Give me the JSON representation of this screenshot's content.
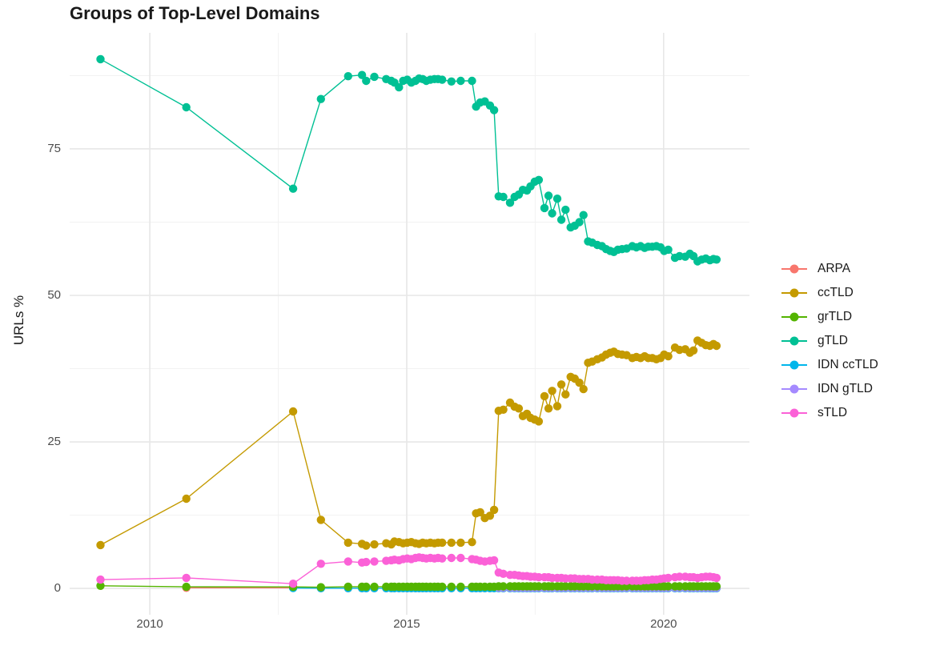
{
  "page": {
    "background": "#ffffff"
  },
  "chart_data": {
    "type": "line",
    "title": "Groups of Top-Level Domains",
    "x_axis": {
      "title": "",
      "tick_labels": [
        "2010",
        "2015",
        "2020"
      ],
      "tick_values": [
        2010,
        2015,
        2020
      ],
      "minor_tick_values": [
        2012.5,
        2017.5
      ],
      "range": [
        2008.44,
        2021.67
      ]
    },
    "y_axis": {
      "title": "URLs %",
      "tick_labels": [
        "0",
        "25",
        "50",
        "75"
      ],
      "tick_values": [
        0,
        25,
        50,
        75
      ],
      "minor_tick_values": [
        12.5,
        37.5,
        62.5,
        87.5
      ],
      "range": [
        -4.5,
        94.8
      ]
    },
    "grid": {
      "major_color": "#e7e7e7",
      "minor_color": "#f2f2f2",
      "background": "#ffffff"
    },
    "legend": {
      "position": "right",
      "items": [
        {
          "label": "ARPA",
          "color": "#F8766D"
        },
        {
          "label": "ccTLD",
          "color": "#C49A00"
        },
        {
          "label": "grTLD",
          "color": "#53B400"
        },
        {
          "label": "gTLD",
          "color": "#00C094"
        },
        {
          "label": "IDN ccTLD",
          "color": "#00B6EB"
        },
        {
          "label": "IDN gTLD",
          "color": "#A58AFF"
        },
        {
          "label": "sTLD",
          "color": "#FB61D7"
        }
      ]
    },
    "x": [
      2009.04,
      2010.71,
      2012.79,
      2013.33,
      2013.86,
      2014.13,
      2014.21,
      2014.37,
      2014.6,
      2014.7,
      2014.76,
      2014.85,
      2014.93,
      2015.01,
      2015.09,
      2015.17,
      2015.24,
      2015.31,
      2015.38,
      2015.46,
      2015.54,
      2015.61,
      2015.69,
      2015.87,
      2016.05,
      2016.27,
      2016.35,
      2016.43,
      2016.52,
      2016.62,
      2016.7,
      2016.79,
      2016.88,
      2017.01,
      2017.1,
      2017.18,
      2017.26,
      2017.34,
      2017.41,
      2017.49,
      2017.57,
      2017.68,
      2017.76,
      2017.83,
      2017.93,
      2018.01,
      2018.09,
      2018.19,
      2018.27,
      2018.36,
      2018.44,
      2018.53,
      2018.61,
      2018.71,
      2018.8,
      2018.88,
      2018.96,
      2019.03,
      2019.11,
      2019.19,
      2019.28,
      2019.39,
      2019.47,
      2019.55,
      2019.63,
      2019.7,
      2019.78,
      2019.86,
      2019.94,
      2020.01,
      2020.09,
      2020.22,
      2020.31,
      2020.42,
      2020.51,
      2020.58,
      2020.66,
      2020.74,
      2020.82,
      2020.9,
      2020.97,
      2021.03
    ],
    "series": [
      {
        "name": "ARPA",
        "color": "#F8766D",
        "start": 1,
        "values": [
          0.1,
          0.1,
          0.05,
          0.03,
          0.03,
          0.03,
          0.03,
          0.03,
          0.03,
          0.03,
          0.03,
          0.03,
          0.03,
          0.03,
          0.03,
          0.03,
          0.03,
          0.03,
          0.03,
          0.03,
          0.03,
          0.03,
          0.03,
          0.03,
          0.03,
          0.03,
          0.03,
          0.03,
          0.03,
          0.03,
          0.03,
          0.03,
          0.03,
          0.03,
          0.03,
          0.03,
          0.03,
          0.03,
          0.03,
          0.03,
          0.03,
          0.03,
          0.03,
          0.03,
          0.03,
          0.03,
          0.03,
          0.03,
          0.03,
          0.03,
          0.03,
          0.03,
          0.03,
          0.03,
          0.03,
          0.03,
          0.03,
          0.03,
          0.03,
          0.03,
          0.03,
          0.03,
          0.03,
          0.03,
          0.03,
          0.03,
          0.03,
          0.03,
          0.03,
          0.03,
          0.03,
          0.03,
          0.03,
          0.03,
          0.03,
          0.03,
          0.03,
          0.03,
          0.03,
          0.03,
          0.03
        ]
      },
      {
        "name": "ccTLD",
        "color": "#C49A00",
        "start": 0,
        "values": [
          7.4,
          15.3,
          30.2,
          11.7,
          7.8,
          7.6,
          7.3,
          7.5,
          7.7,
          7.5,
          8.0,
          7.9,
          7.7,
          7.8,
          7.9,
          7.7,
          7.6,
          7.8,
          7.7,
          7.8,
          7.7,
          7.8,
          7.8,
          7.8,
          7.8,
          7.9,
          12.8,
          13.0,
          12.0,
          12.4,
          13.4,
          30.3,
          30.5,
          31.7,
          31.0,
          30.7,
          29.4,
          29.8,
          29.1,
          28.8,
          28.5,
          32.8,
          30.7,
          33.7,
          31.1,
          34.8,
          33.1,
          36.1,
          35.8,
          35.1,
          34.0,
          38.5,
          38.7,
          39.1,
          39.4,
          39.9,
          40.2,
          40.4,
          40.0,
          39.9,
          39.8,
          39.3,
          39.5,
          39.3,
          39.6,
          39.3,
          39.3,
          39.1,
          39.3,
          39.9,
          39.6,
          41.1,
          40.7,
          40.8,
          40.2,
          40.6,
          42.3,
          41.9,
          41.5,
          41.4,
          41.7,
          41.4
        ]
      },
      {
        "name": "grTLD",
        "color": "#53B400",
        "start": 0,
        "values": [
          0.45,
          0.27,
          0.25,
          0.2,
          0.3,
          0.3,
          0.3,
          0.3,
          0.3,
          0.3,
          0.3,
          0.3,
          0.3,
          0.3,
          0.3,
          0.3,
          0.3,
          0.3,
          0.3,
          0.3,
          0.3,
          0.3,
          0.3,
          0.3,
          0.3,
          0.3,
          0.3,
          0.3,
          0.3,
          0.3,
          0.3,
          0.35,
          0.35,
          0.35,
          0.35,
          0.35,
          0.35,
          0.35,
          0.35,
          0.35,
          0.35,
          0.35,
          0.35,
          0.35,
          0.35,
          0.35,
          0.35,
          0.35,
          0.35,
          0.35,
          0.35,
          0.35,
          0.35,
          0.35,
          0.35,
          0.35,
          0.35,
          0.35,
          0.35,
          0.35,
          0.35,
          0.35,
          0.35,
          0.35,
          0.35,
          0.35,
          0.35,
          0.35,
          0.35,
          0.35,
          0.35,
          0.35,
          0.35,
          0.35,
          0.35,
          0.35,
          0.35,
          0.35,
          0.35,
          0.35,
          0.35,
          0.35
        ]
      },
      {
        "name": "gTLD",
        "color": "#00C094",
        "start": 0,
        "values": [
          90.3,
          82.1,
          68.2,
          83.5,
          87.4,
          87.6,
          86.6,
          87.3,
          86.9,
          86.6,
          86.3,
          85.5,
          86.6,
          86.8,
          86.3,
          86.6,
          87.0,
          86.9,
          86.6,
          86.8,
          86.9,
          86.9,
          86.8,
          86.5,
          86.6,
          86.6,
          82.2,
          82.9,
          83.1,
          82.4,
          81.6,
          66.9,
          66.8,
          65.8,
          66.8,
          67.2,
          68.0,
          67.9,
          68.6,
          69.4,
          69.7,
          64.9,
          67.0,
          64.0,
          66.5,
          62.9,
          64.6,
          61.6,
          61.9,
          62.5,
          63.7,
          59.2,
          59.0,
          58.6,
          58.4,
          57.9,
          57.6,
          57.4,
          57.8,
          57.9,
          58.0,
          58.4,
          58.2,
          58.4,
          58.1,
          58.3,
          58.3,
          58.4,
          58.2,
          57.6,
          57.8,
          56.4,
          56.7,
          56.6,
          57.1,
          56.7,
          55.8,
          56.1,
          56.3,
          56.0,
          56.2,
          56.1
        ]
      },
      {
        "name": "IDN ccTLD",
        "color": "#00B6EB",
        "start": 2,
        "values": [
          0.06,
          0.04,
          0.04,
          0.04,
          0.04,
          0.04,
          0.04,
          0.04,
          0.04,
          0.04,
          0.04,
          0.04,
          0.04,
          0.04,
          0.04,
          0.04,
          0.04,
          0.04,
          0.04,
          0.04,
          0.04,
          0.04,
          0.04,
          0.04,
          0.04,
          0.04,
          0.04,
          0.04,
          0.04,
          0.04,
          0.04,
          0.04,
          0.04,
          0.04,
          0.04,
          0.04,
          0.04,
          0.04,
          0.04,
          0.04,
          0.04,
          0.04,
          0.04,
          0.04,
          0.04,
          0.04,
          0.04,
          0.04,
          0.04,
          0.04,
          0.04,
          0.04,
          0.04,
          0.04,
          0.04,
          0.04,
          0.04,
          0.04,
          0.04,
          0.04,
          0.04,
          0.04,
          0.04,
          0.04,
          0.04,
          0.04,
          0.04,
          0.04,
          0.04,
          0.04,
          0.04,
          0.04,
          0.04,
          0.04,
          0.04,
          0.04,
          0.04,
          0.04,
          0.04,
          0.04
        ]
      },
      {
        "name": "IDN gTLD",
        "color": "#A58AFF",
        "start": 31,
        "values": [
          0.12,
          0.12,
          0.12,
          0.12,
          0.12,
          0.12,
          0.12,
          0.12,
          0.12,
          0.12,
          0.12,
          0.12,
          0.12,
          0.12,
          0.12,
          0.12,
          0.12,
          0.12,
          0.12,
          0.12,
          0.12,
          0.12,
          0.12,
          0.12,
          0.12,
          0.12,
          0.12,
          0.12,
          0.12,
          0.12,
          0.12,
          0.12,
          0.12,
          0.12,
          0.12,
          0.12,
          0.12,
          0.12,
          0.12,
          0.12,
          0.12,
          0.12,
          0.12,
          0.12,
          0.12,
          0.12,
          0.12,
          0.12,
          0.12,
          0.12,
          0.12
        ]
      },
      {
        "name": "sTLD",
        "color": "#FB61D7",
        "start": 0,
        "values": [
          1.5,
          1.8,
          0.8,
          4.2,
          4.6,
          4.4,
          4.5,
          4.6,
          4.7,
          4.8,
          4.9,
          4.8,
          5.0,
          5.1,
          5.0,
          5.2,
          5.3,
          5.2,
          5.1,
          5.2,
          5.1,
          5.2,
          5.1,
          5.2,
          5.2,
          5.0,
          4.9,
          4.7,
          4.6,
          4.7,
          4.8,
          2.7,
          2.5,
          2.3,
          2.3,
          2.2,
          2.1,
          2.1,
          2.0,
          2.0,
          1.9,
          1.9,
          1.9,
          1.8,
          1.8,
          1.8,
          1.7,
          1.7,
          1.7,
          1.6,
          1.6,
          1.6,
          1.5,
          1.5,
          1.5,
          1.4,
          1.4,
          1.4,
          1.4,
          1.3,
          1.3,
          1.3,
          1.3,
          1.3,
          1.4,
          1.4,
          1.5,
          1.5,
          1.6,
          1.7,
          1.8,
          1.9,
          2.0,
          2.0,
          1.9,
          1.9,
          1.8,
          1.9,
          2.0,
          2.0,
          1.9,
          1.8
        ]
      }
    ]
  }
}
